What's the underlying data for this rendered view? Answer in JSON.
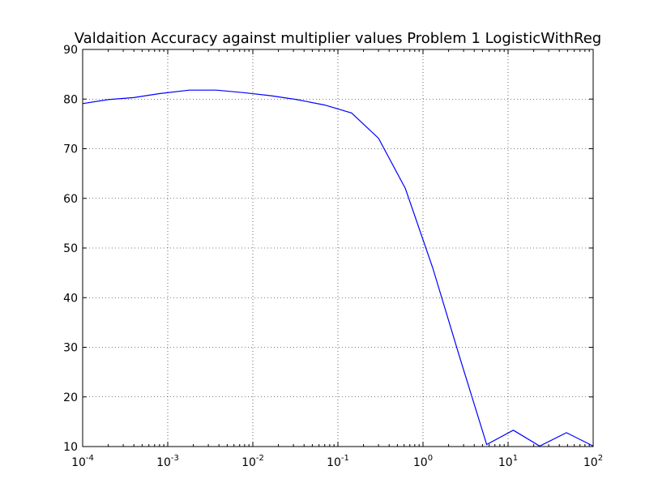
{
  "chart_data": {
    "type": "line",
    "title": "Valdaition Accuracy against multiplier values Problem 1 LogisticWithReg",
    "xlabel": "",
    "ylabel": "",
    "xscale": "log",
    "xlim": [
      0.0001,
      100
    ],
    "ylim": [
      10,
      90
    ],
    "grid": true,
    "x_ticks": [
      {
        "base": "10",
        "exp": "-4",
        "value": 0.0001
      },
      {
        "base": "10",
        "exp": "-3",
        "value": 0.001
      },
      {
        "base": "10",
        "exp": "-2",
        "value": 0.01
      },
      {
        "base": "10",
        "exp": "-1",
        "value": 0.1
      },
      {
        "base": "10",
        "exp": "0",
        "value": 1
      },
      {
        "base": "10",
        "exp": "1",
        "value": 10
      },
      {
        "base": "10",
        "exp": "2",
        "value": 100
      }
    ],
    "y_ticks": [
      "10",
      "20",
      "30",
      "40",
      "50",
      "60",
      "70",
      "80",
      "90"
    ],
    "series": [
      {
        "color": "#0000ff",
        "x": [
          0.0001,
          0.0002,
          0.0004,
          0.0008,
          0.0018,
          0.0037,
          0.0078,
          0.016,
          0.033,
          0.07,
          0.145,
          0.3,
          0.62,
          1.3,
          2.7,
          5.6,
          11.5,
          23.5,
          48.5,
          100
        ],
        "y": [
          79.1,
          79.9,
          80.3,
          81.1,
          81.8,
          81.8,
          81.3,
          80.7,
          79.9,
          78.8,
          77.2,
          72.1,
          62.0,
          46.0,
          28.0,
          10.4,
          13.3,
          10.1,
          12.8,
          10.1
        ]
      }
    ]
  }
}
